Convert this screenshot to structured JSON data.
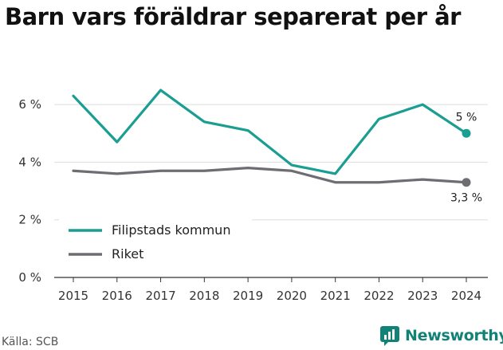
{
  "title": "Barn vars föräldrar separerat per år",
  "source": "Källa: SCB",
  "brand": {
    "name": "Newsworthy",
    "icon": "newsworthy-logo-icon"
  },
  "colors": {
    "series1": "#1a9e92",
    "series2": "#6e6d72",
    "grid": "#dddddd",
    "axis": "#333333",
    "brand": "#128277"
  },
  "chart_data": {
    "type": "line",
    "x": [
      "2015",
      "2016",
      "2017",
      "2018",
      "2019",
      "2020",
      "2021",
      "2022",
      "2023",
      "2024"
    ],
    "series": [
      {
        "name": "Filipstads kommun",
        "values": [
          6.3,
          4.7,
          6.5,
          5.4,
          5.1,
          3.9,
          3.6,
          5.5,
          6.0,
          5.0
        ],
        "end_label": "5 %"
      },
      {
        "name": "Riket",
        "values": [
          3.7,
          3.6,
          3.7,
          3.7,
          3.8,
          3.7,
          3.3,
          3.3,
          3.4,
          3.3
        ],
        "end_label": "3,3 %"
      }
    ],
    "yticks": [
      {
        "value": 0,
        "label": "0 %"
      },
      {
        "value": 2,
        "label": "2 %"
      },
      {
        "value": 4,
        "label": "4 %"
      },
      {
        "value": 6,
        "label": "6 %"
      }
    ],
    "ylim": [
      0,
      7
    ],
    "grid": true,
    "legend_position": "bottom-left"
  }
}
